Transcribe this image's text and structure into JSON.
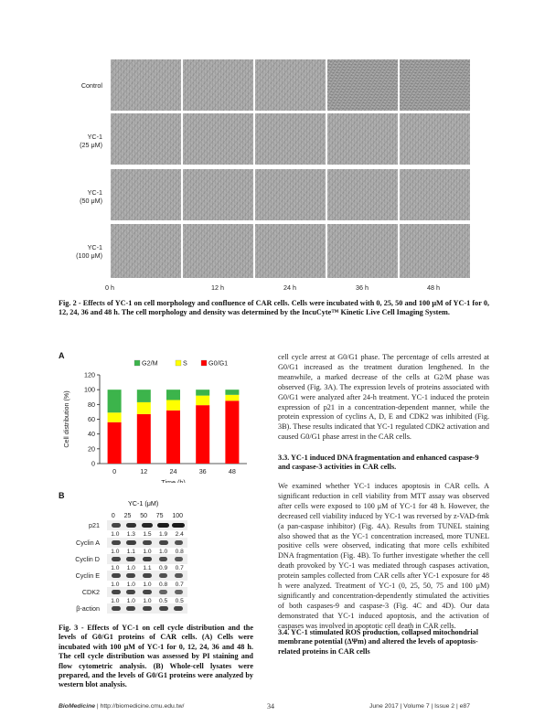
{
  "figure2": {
    "row_labels": [
      [
        "Control"
      ],
      [
        "YC-1",
        "(25 μM)"
      ],
      [
        "YC-1",
        "(50 μM)"
      ],
      [
        "YC-1",
        "(100 μM)"
      ]
    ],
    "time_labels": [
      "0 h",
      "12 h",
      "24 h",
      "36 h",
      "48 h"
    ],
    "caption": "Fig. 2 - Effects of YC-1 on cell morphology and confluence of CAR cells.  Cells were incubated with 0, 25, 50 and 100 μM of YC-1 for 0, 12, 24, 36 and 48 h.  The cell morphology and density was determined by the IncuCyte™ Kinetic Live Cell Imaging System."
  },
  "figure3": {
    "panel_a_letter": "A",
    "panel_b_letter": "B",
    "caption_line1": "Fig. 3 - Effects of YC-1 on cell cycle distribution and the levels of G0/G1 proteins of CAR cells.  (A) Cells were incubated with 100 μM of YC-1 for 0, 12, 24, 36 and 48 h.  The cell cycle distribution was assessed by PI staining and flow cytometric analysis.  (B) Whole-cell lysates were prepared, and the levels of G0/G1 proteins were analyzed by western blot analysis.",
    "western_blot": {
      "title": "YC-1 (μM)",
      "concentrations": [
        "0",
        "25",
        "50",
        "75",
        "100"
      ],
      "rows": [
        {
          "label": "p21",
          "values": [
            "1.0",
            "1.3",
            "1.5",
            "1.9",
            "2.4"
          ]
        },
        {
          "label": "Cyclin A",
          "values": [
            "1.0",
            "1.1",
            "1.0",
            "1.0",
            "0.8"
          ]
        },
        {
          "label": "Cyclin D",
          "values": [
            "1.0",
            "1.0",
            "1.1",
            "0.9",
            "0.7"
          ]
        },
        {
          "label": "Cyclin E",
          "values": [
            "1.0",
            "1.0",
            "1.0",
            "0.8",
            "0.7"
          ]
        },
        {
          "label": "CDK2",
          "values": [
            "1.0",
            "1.0",
            "1.0",
            "0.5",
            "0.5"
          ]
        },
        {
          "label": "β-action",
          "values": []
        }
      ]
    }
  },
  "chart_data": {
    "type": "bar",
    "stacked": true,
    "categories": [
      "0",
      "12",
      "24",
      "36",
      "48"
    ],
    "xlabel": "Time (h)",
    "ylabel": "Cell distribution (%)",
    "ylim": [
      0,
      120
    ],
    "yticks": [
      0,
      20,
      40,
      60,
      80,
      100,
      120
    ],
    "legend_position": "top",
    "series": [
      {
        "name": "G0/G1",
        "color": "#ff0000",
        "values": [
          56,
          67,
          72,
          79,
          85
        ]
      },
      {
        "name": "S",
        "color": "#ffff00",
        "values": [
          13,
          16,
          14,
          13,
          8
        ]
      },
      {
        "name": "G2/M",
        "color": "#3cb44b",
        "values": [
          31,
          17,
          14,
          8,
          7
        ]
      }
    ],
    "legend_order": [
      "G2/M",
      "S",
      "G0/G1"
    ]
  },
  "body": {
    "para1": "cell cycle arrest at G0/G1 phase.  The percentage of cells arrested at G0/G1 increased as the treatment duration lengthened.  In the meanwhile, a marked decrease of the cells at G2/M phase was observed (Fig. 3A).  The expression levels of proteins associated with G0/G1 were analyzed after 24-h treatment. YC-1 induced the protein expression of p21 in a concentration-dependent manner, while the protein expression of cyclins A, D, E and CDK2 was inhibited (Fig. 3B).  These results indicated that YC-1 regulated CDK2 activation and caused G0/G1 phase arrest in the CAR cells.",
    "heading1": "3.3.  YC-1 induced DNA fragmentation and enhanced caspase-9 and caspase-3 activities in CAR cells.",
    "para2": "We examined whether YC-1 induces apoptosis in CAR cells. A significant reduction in cell viability from MTT assay was observed after cells were exposed to 100 μM of YC-1 for 48 h.  However, the decreased cell viability induced by YC-1 was reversed by z-VAD-fmk (a pan-caspase inhibitor) (Fig. 4A). Results from TUNEL staining also showed that as the YC-1 concentration increased, more TUNEL positive cells were observed, indicating that more cells exhibited DNA fragmentation (Fig. 4B).  To further investigate whether the cell death provoked by YC-1 was mediated through caspases activation, protein samples collected from CAR cells after YC-1 exposure for 48 h were analyzed.  Treatment of YC-1 (0, 25, 50, 75 and 100 μM) significantly and concentration-dependently stimulated the activities of both caspases-9 and caspase-3 (Fig. 4C and 4D).  Our data demonstrated that YC-1 induced apoptosis, and the activation of caspases was involved in apoptotic cell death in CAR cells.",
    "heading2": "3.4.  YC-1 stimulated ROS production, collapsed mitochondrial membrane potential (ΔΨm) and altered the levels of apoptosis-related proteins in CAR cells"
  },
  "footer": {
    "journal": "BioMedicine",
    "url": " | http://biomedicine.cmu.edu.tw/",
    "page": "34",
    "issue": "June 2017 | Volume 7 | Issue 2 | e87"
  }
}
